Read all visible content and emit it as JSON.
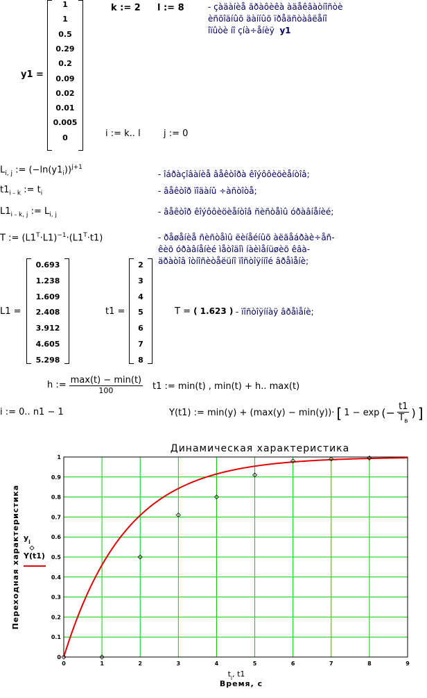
{
  "worksheet": {
    "y1_label": "y1 =",
    "y1_values": [
      "1",
      "1",
      "0.5",
      "0.29",
      "0.2",
      "0.09",
      "0.02",
      "0.01",
      "0.005",
      "0"
    ],
    "k_def": "k := 2",
    "l_def": "l := 8",
    "comment_y1": [
      "- çàäàíèå ãðàôèêà  àäåêâàòíîñòè",
      "èñõîäíûõ äàííûõ  ïðåäñòàâëåíî",
      "îïûòè  íî  çíà÷åíèÿ"
    ],
    "comment_y1_var": "y1",
    "i_range": "i := k.. l",
    "j_def": "j := 0",
    "eq_L": "L",
    "eq_L_sub": "i, j",
    "eq_L_rhs": ":= (−ln(y1",
    "eq_L_rhs_sub": "i",
    "eq_L_rhs_end": "))",
    "eq_L_sup": "j+1",
    "comment_L": "- îáðàçîâàíèå  âåêòîðà  êîýôôèöèåíòîâ;",
    "eq_t1": "t1",
    "eq_t1_sub": "i - k",
    "eq_t1_rhs": ":= t",
    "eq_t1_rhs_sub": "i",
    "comment_t1": "- âåêòîð  ïîäàíû  ÷àñòîòå;",
    "eq_L1": "L1",
    "eq_L1_sub": "i - k, j",
    "eq_L1_rhs": ":= L",
    "eq_L1_rhs_sub": "i, j",
    "comment_L1": "- âåêòîð  êîýôôèöèåíòîâ  ñèñòåìû  óðàâíåíèé;",
    "eq_T": "T := (L1",
    "eq_T_sup1": "T",
    "eq_T_mid": "·L1)",
    "eq_T_sup2": "−1",
    "eq_T_mid2": "·(L1",
    "eq_T_sup3": "T",
    "eq_T_end": "·t1)",
    "comment_T": [
      "- ðåøåíèå  ñèñòåìû  ëèíåéíûõ  àëãåáðàè÷åñ-",
      "êèõ  óðàâíåíèé  ìåòîäîì  íàèìåíüøèõ  êâà-",
      "äðàòîâ  îòíîñèòåëüíî  ïîñòîÿííîé  âðåìåíè;"
    ],
    "L1_label": "L1 =",
    "L1_values": [
      "0.693",
      "1.238",
      "1.609",
      "2.408",
      "3.912",
      "4.605",
      "5.298"
    ],
    "t1_label": "t1 =",
    "t1_values": [
      "2",
      "3",
      "4",
      "5",
      "6",
      "7",
      "8"
    ],
    "T_result_label": "T =",
    "T_result_value": "( 1.623 )",
    "comment_T_result": "- ïîñòîÿííàÿ  âðåìåíè;",
    "h_lhs": "h :=",
    "h_num": "max(t) − min(t)",
    "h_den": "100",
    "t1_range": "t1 := min(t) , min(t) + h.. max(t)",
    "i_def": "i := 0.. n1 − 1",
    "Y_def_lhs": "Y(t1) := min(y) + (max(y) − min(y))·",
    "Y_def_rhs": "1 − exp",
    "Y_def_frac_num": "t1",
    "Y_def_frac_den": "T",
    "Y_def_frac_den_sub": "в"
  },
  "chart_data": {
    "type": "line",
    "title": "Динамическая  характеристика",
    "xlabel": "Время, с",
    "x_axis_vars": "t",
    "x_axis_vars_sub": "i",
    "x_axis_vars_end": ", t1",
    "ylabel": "Переходная  характеристика",
    "xlim": [
      0,
      9
    ],
    "ylim": [
      0,
      1
    ],
    "x_ticks": [
      "0",
      "1",
      "2",
      "3",
      "4",
      "5",
      "6",
      "7",
      "8",
      "9"
    ],
    "y_ticks": [
      "0",
      "0.1",
      "0.2",
      "0.3",
      "0.4",
      "0.5",
      "0.6",
      "0.7",
      "0.8",
      "0.9",
      "1"
    ],
    "grid": true,
    "grid_color": "#00cc00",
    "series": [
      {
        "name": "y",
        "name_sub": "i",
        "style": "markers",
        "marker": "diamond",
        "color": "#000000",
        "x": [
          0,
          1,
          2,
          3,
          4,
          5,
          6,
          7,
          8
        ],
        "y": [
          0,
          0,
          0.5,
          0.71,
          0.8,
          0.91,
          0.98,
          0.99,
          0.995
        ]
      },
      {
        "name": "Y(t1)",
        "style": "line",
        "color": "#e00000",
        "time_constant": 1.623,
        "x_range": [
          0,
          9
        ]
      }
    ],
    "legend_position": "left"
  }
}
